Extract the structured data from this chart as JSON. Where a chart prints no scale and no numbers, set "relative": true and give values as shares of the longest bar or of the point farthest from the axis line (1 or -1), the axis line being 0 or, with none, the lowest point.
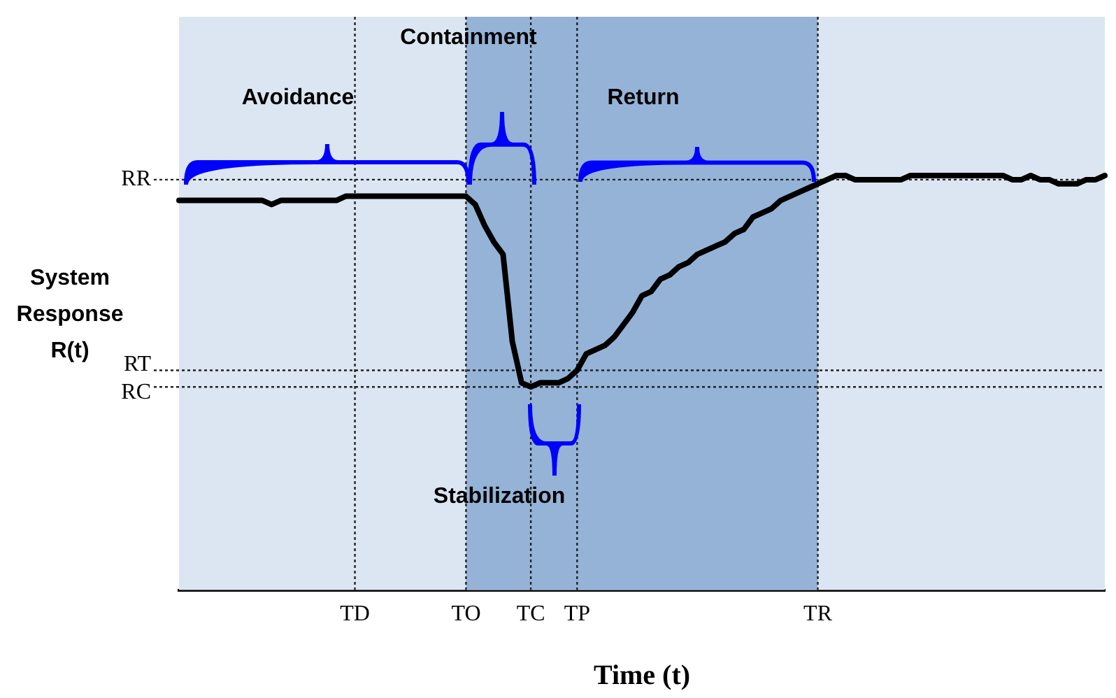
{
  "chart_data": {
    "type": "line",
    "relative": true,
    "xlabel": "Time (t)",
    "ylabel": "System Response R(t)",
    "categories": [
      null,
      null,
      null,
      null,
      null,
      null,
      null,
      null,
      null,
      null,
      null,
      null,
      null,
      null,
      null,
      null,
      null,
      null,
      null,
      "TD",
      null,
      null,
      null,
      null,
      null,
      null,
      null,
      null,
      null,
      null,
      null,
      "TO",
      null,
      null,
      null,
      null,
      null,
      null,
      "TC",
      null,
      null,
      null,
      null,
      "TP",
      null,
      null,
      null,
      null,
      null,
      null,
      null,
      null,
      null,
      null,
      null,
      null,
      null,
      null,
      null,
      null,
      null,
      null,
      null,
      null,
      null,
      null,
      null,
      null,
      null,
      "TR",
      null,
      null,
      null,
      null,
      null,
      null,
      null,
      null,
      null,
      null,
      null,
      null,
      null,
      null,
      null,
      null,
      null,
      null,
      null,
      null,
      null,
      null,
      null,
      null,
      null,
      null,
      null,
      null,
      null,
      null,
      null
    ],
    "series": [
      {
        "color": "#000000",
        "values": [
          0.94,
          0.94,
          0.94,
          0.94,
          0.94,
          0.94,
          0.94,
          0.94,
          0.94,
          0.94,
          0.93,
          0.94,
          0.94,
          0.94,
          0.94,
          0.94,
          0.94,
          0.94,
          0.95,
          0.95,
          0.95,
          0.95,
          0.95,
          0.95,
          0.95,
          0.95,
          0.95,
          0.95,
          0.95,
          0.95,
          0.95,
          0.95,
          0.93,
          0.88,
          0.84,
          0.81,
          0.6,
          0.5,
          0.49,
          0.5,
          0.5,
          0.5,
          0.51,
          0.53,
          0.57,
          0.58,
          0.59,
          0.61,
          0.64,
          0.67,
          0.71,
          0.72,
          0.75,
          0.76,
          0.78,
          0.79,
          0.81,
          0.82,
          0.83,
          0.84,
          0.86,
          0.87,
          0.9,
          0.91,
          0.92,
          0.94,
          0.95,
          0.96,
          0.97,
          0.98,
          0.99,
          1.0,
          1.0,
          0.99,
          0.99,
          0.99,
          0.99,
          0.99,
          0.99,
          1.0,
          1.0,
          1.0,
          1.0,
          1.0,
          1.0,
          1.0,
          1.0,
          1.0,
          1.0,
          1.0,
          0.99,
          0.99,
          1.0,
          0.99,
          0.99,
          0.98,
          0.98,
          0.98,
          0.99,
          0.99,
          1.0
        ]
      }
    ],
    "ref_lines": [
      {
        "axis": "x",
        "value": "TD",
        "line_style": "dotted"
      },
      {
        "axis": "x",
        "value": "TO",
        "line_style": "dotted"
      },
      {
        "axis": "x",
        "value": "TC",
        "line_style": "dotted"
      },
      {
        "axis": "x",
        "value": "TP",
        "line_style": "dotted"
      },
      {
        "axis": "x",
        "value": "TR",
        "line_style": "dotted"
      },
      {
        "axis": "y",
        "value": 0.99,
        "label": "RR",
        "line_style": "dotted"
      },
      {
        "axis": "y",
        "value": 0.53,
        "label": "RT",
        "line_style": "dotted"
      },
      {
        "axis": "y",
        "value": 0.49,
        "label": "RC",
        "line_style": "dotted"
      }
    ],
    "bands": [
      {
        "axis": "x",
        "from": "TO",
        "to": "TR",
        "color": "#95b3d7"
      }
    ],
    "annotations": [
      "Avoidance",
      "Containment",
      "Return",
      "Stabilization"
    ],
    "marker": "none",
    "line_style": "solid",
    "legend": false
  }
}
